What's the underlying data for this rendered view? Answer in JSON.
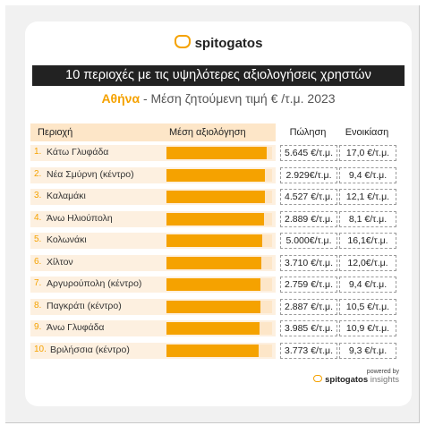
{
  "brand": "spitogatos",
  "banner_title": "10 περιοχές με τις υψηλότερες αξιολογήσεις χρηστών",
  "subtitle_city": "Αθήνα",
  "subtitle_rest": " - Μέση ζητούμενη τιμή € /τ.μ. 2023",
  "headers": {
    "area": "Περιοχή",
    "rating": "Μέση αξιολόγηση",
    "sale": "Πώληση",
    "rent": "Ενοικίαση"
  },
  "powered_by": "powered by",
  "powered_brand": "spitogatos",
  "powered_suffix": "insights",
  "chart_data": {
    "type": "table",
    "rows": [
      {
        "rank": "1.",
        "area": "Κάτω Γλυφάδα",
        "rating": 0.95,
        "sale": "5.645 €/τ.μ.",
        "rent": "17,0 €/τ.μ."
      },
      {
        "rank": "2.",
        "area": "Νέα Σμύρνη (κέντρο)",
        "rating": 0.93,
        "sale": "2.929€/τ.μ.",
        "rent": "9,4 €/τ.μ."
      },
      {
        "rank": "3.",
        "area": "Καλαμάκι",
        "rating": 0.93,
        "sale": "4.527 €/τ.μ.",
        "rent": "12,1 €/τ.μ."
      },
      {
        "rank": "4.",
        "area": "Άνω Ηλιούπολη",
        "rating": 0.92,
        "sale": "2.889 €/τ.μ.",
        "rent": "8,1 €/τ.μ."
      },
      {
        "rank": "5.",
        "area": "Κολωνάκι",
        "rating": 0.91,
        "sale": "5.000€/τ.μ.",
        "rent": "16,1€/τ.μ."
      },
      {
        "rank": "6.",
        "area": "Χίλτον",
        "rating": 0.9,
        "sale": "3.710 €/τ.μ.",
        "rent": "12,0€/τ.μ."
      },
      {
        "rank": "7.",
        "area": "Αργυρούπολη (κέντρο)",
        "rating": 0.89,
        "sale": "2.759 €/τ.μ.",
        "rent": "9,4 €/τ.μ."
      },
      {
        "rank": "8.",
        "area": "Παγκράτι (κέντρο)",
        "rating": 0.89,
        "sale": "2.887 €/τ.μ.",
        "rent": "10,5 €/τ.μ."
      },
      {
        "rank": "9.",
        "area": "Άνω Γλυφάδα",
        "rating": 0.88,
        "sale": "3.985 €/τ.μ.",
        "rent": "10,9 €/τ.μ."
      },
      {
        "rank": "10.",
        "area": "Βριλήσσια (κέντρο)",
        "rating": 0.87,
        "sale": "3.773 €/τ.μ.",
        "rent": "9,3 €/τ.μ."
      }
    ]
  }
}
